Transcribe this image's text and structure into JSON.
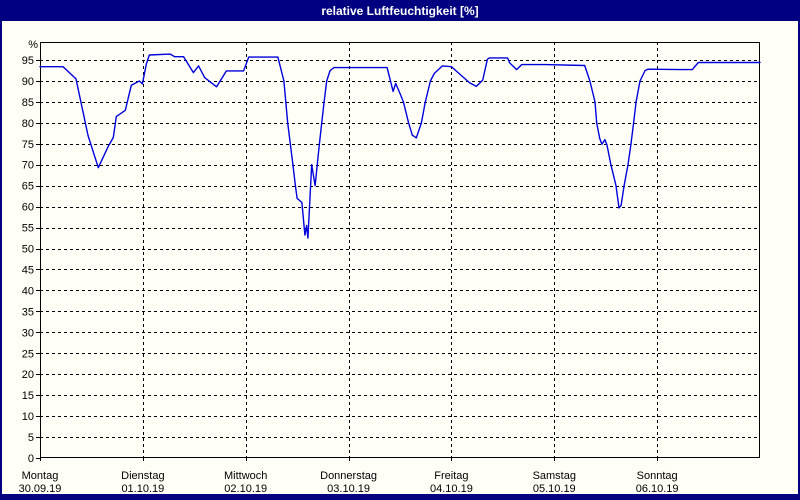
{
  "window": {
    "title": "relative Luftfeuchtigkeit [%]",
    "title_bar_color": "#000080",
    "border_color": "#000080",
    "content_background": "#fffff7"
  },
  "chart_data": {
    "type": "line",
    "title": "relative Luftfeuchtigkeit [%]",
    "ylabel": "%",
    "xlabel": "",
    "series_name": "relative Luftfeuchtigkeit",
    "line_color": "#0000dd",
    "grid_color": "#000000",
    "grid_style": "dashed",
    "legend": "none",
    "ylim": [
      0,
      99.3
    ],
    "y_ticks": [
      0,
      5,
      10,
      15,
      20,
      25,
      30,
      35,
      40,
      45,
      50,
      55,
      60,
      65,
      70,
      75,
      80,
      85,
      90,
      95
    ],
    "x_unit": "hours",
    "xlim": [
      0,
      168
    ],
    "x_days": [
      {
        "label": "Montag",
        "date": "30.09.19",
        "hour": 0
      },
      {
        "label": "Dienstag",
        "date": "01.10.19",
        "hour": 24
      },
      {
        "label": "Mittwoch",
        "date": "02.10.19",
        "hour": 48
      },
      {
        "label": "Donnerstag",
        "date": "03.10.19",
        "hour": 72
      },
      {
        "label": "Freitag",
        "date": "04.10.19",
        "hour": 96
      },
      {
        "label": "Samstag",
        "date": "05.10.19",
        "hour": 120
      },
      {
        "label": "Sonntag",
        "date": "06.10.19",
        "hour": 144
      }
    ],
    "points": [
      [
        0,
        93.4
      ],
      [
        5.4,
        93.4
      ],
      [
        8.4,
        90.5
      ],
      [
        11.2,
        77
      ],
      [
        13.6,
        69.3
      ],
      [
        15.9,
        74.3
      ],
      [
        17.1,
        76.5
      ],
      [
        17.8,
        81.5
      ],
      [
        19.9,
        83
      ],
      [
        21.3,
        89
      ],
      [
        23.2,
        90
      ],
      [
        23.9,
        89.3
      ],
      [
        24.8,
        94
      ],
      [
        25.5,
        96.2
      ],
      [
        30.4,
        96.4
      ],
      [
        31.4,
        95.8
      ],
      [
        33.5,
        95.8
      ],
      [
        34.7,
        93.8
      ],
      [
        35.8,
        92
      ],
      [
        37,
        93.6
      ],
      [
        38.4,
        90.8
      ],
      [
        41.2,
        88.6
      ],
      [
        43.5,
        92.4
      ],
      [
        47.5,
        92.4
      ],
      [
        48.7,
        95.7
      ],
      [
        55.5,
        95.7
      ],
      [
        56.9,
        90
      ],
      [
        57.8,
        80
      ],
      [
        59,
        70
      ],
      [
        59.6,
        65
      ],
      [
        60,
        62
      ],
      [
        61.1,
        61
      ],
      [
        61.8,
        53.2
      ],
      [
        62.2,
        55.5
      ],
      [
        62.5,
        52.5
      ],
      [
        63.4,
        70
      ],
      [
        64.2,
        65
      ],
      [
        65.2,
        75
      ],
      [
        66.3,
        85
      ],
      [
        66.9,
        90
      ],
      [
        67.7,
        92.5
      ],
      [
        68.6,
        93.2
      ],
      [
        81,
        93.2
      ],
      [
        82.4,
        87.5
      ],
      [
        83,
        89.4
      ],
      [
        84,
        87
      ],
      [
        84.8,
        85
      ],
      [
        86,
        80
      ],
      [
        86.9,
        77
      ],
      [
        87.3,
        76.8
      ],
      [
        87.8,
        76.4
      ],
      [
        89,
        80
      ],
      [
        89.9,
        85
      ],
      [
        91.1,
        90
      ],
      [
        92,
        91.8
      ],
      [
        93.9,
        93.6
      ],
      [
        96,
        93.4
      ],
      [
        98.3,
        91.3
      ],
      [
        100.2,
        89.6
      ],
      [
        101.8,
        88.7
      ],
      [
        103.3,
        90.2
      ],
      [
        104.4,
        95.2
      ],
      [
        104.9,
        95.5
      ],
      [
        109.1,
        95.5
      ],
      [
        109.6,
        94.3
      ],
      [
        111.2,
        92.7
      ],
      [
        112.4,
        93.9
      ],
      [
        117.8,
        93.9
      ],
      [
        127.1,
        93.7
      ],
      [
        128.3,
        90
      ],
      [
        129.5,
        85
      ],
      [
        129.9,
        80
      ],
      [
        130.6,
        76.3
      ],
      [
        131.1,
        74.9
      ],
      [
        131.8,
        76
      ],
      [
        132.3,
        74.7
      ],
      [
        133.2,
        70
      ],
      [
        134.4,
        65
      ],
      [
        135.1,
        59.7
      ],
      [
        135.6,
        60.3
      ],
      [
        136.3,
        65
      ],
      [
        137.2,
        70
      ],
      [
        137.9,
        75
      ],
      [
        138.5,
        80
      ],
      [
        139.1,
        85
      ],
      [
        140,
        90
      ],
      [
        141.2,
        92.5
      ],
      [
        141.9,
        92.8
      ],
      [
        149.4,
        92.7
      ],
      [
        152.2,
        92.7
      ],
      [
        153.6,
        94.4
      ],
      [
        168,
        94.4
      ]
    ]
  }
}
